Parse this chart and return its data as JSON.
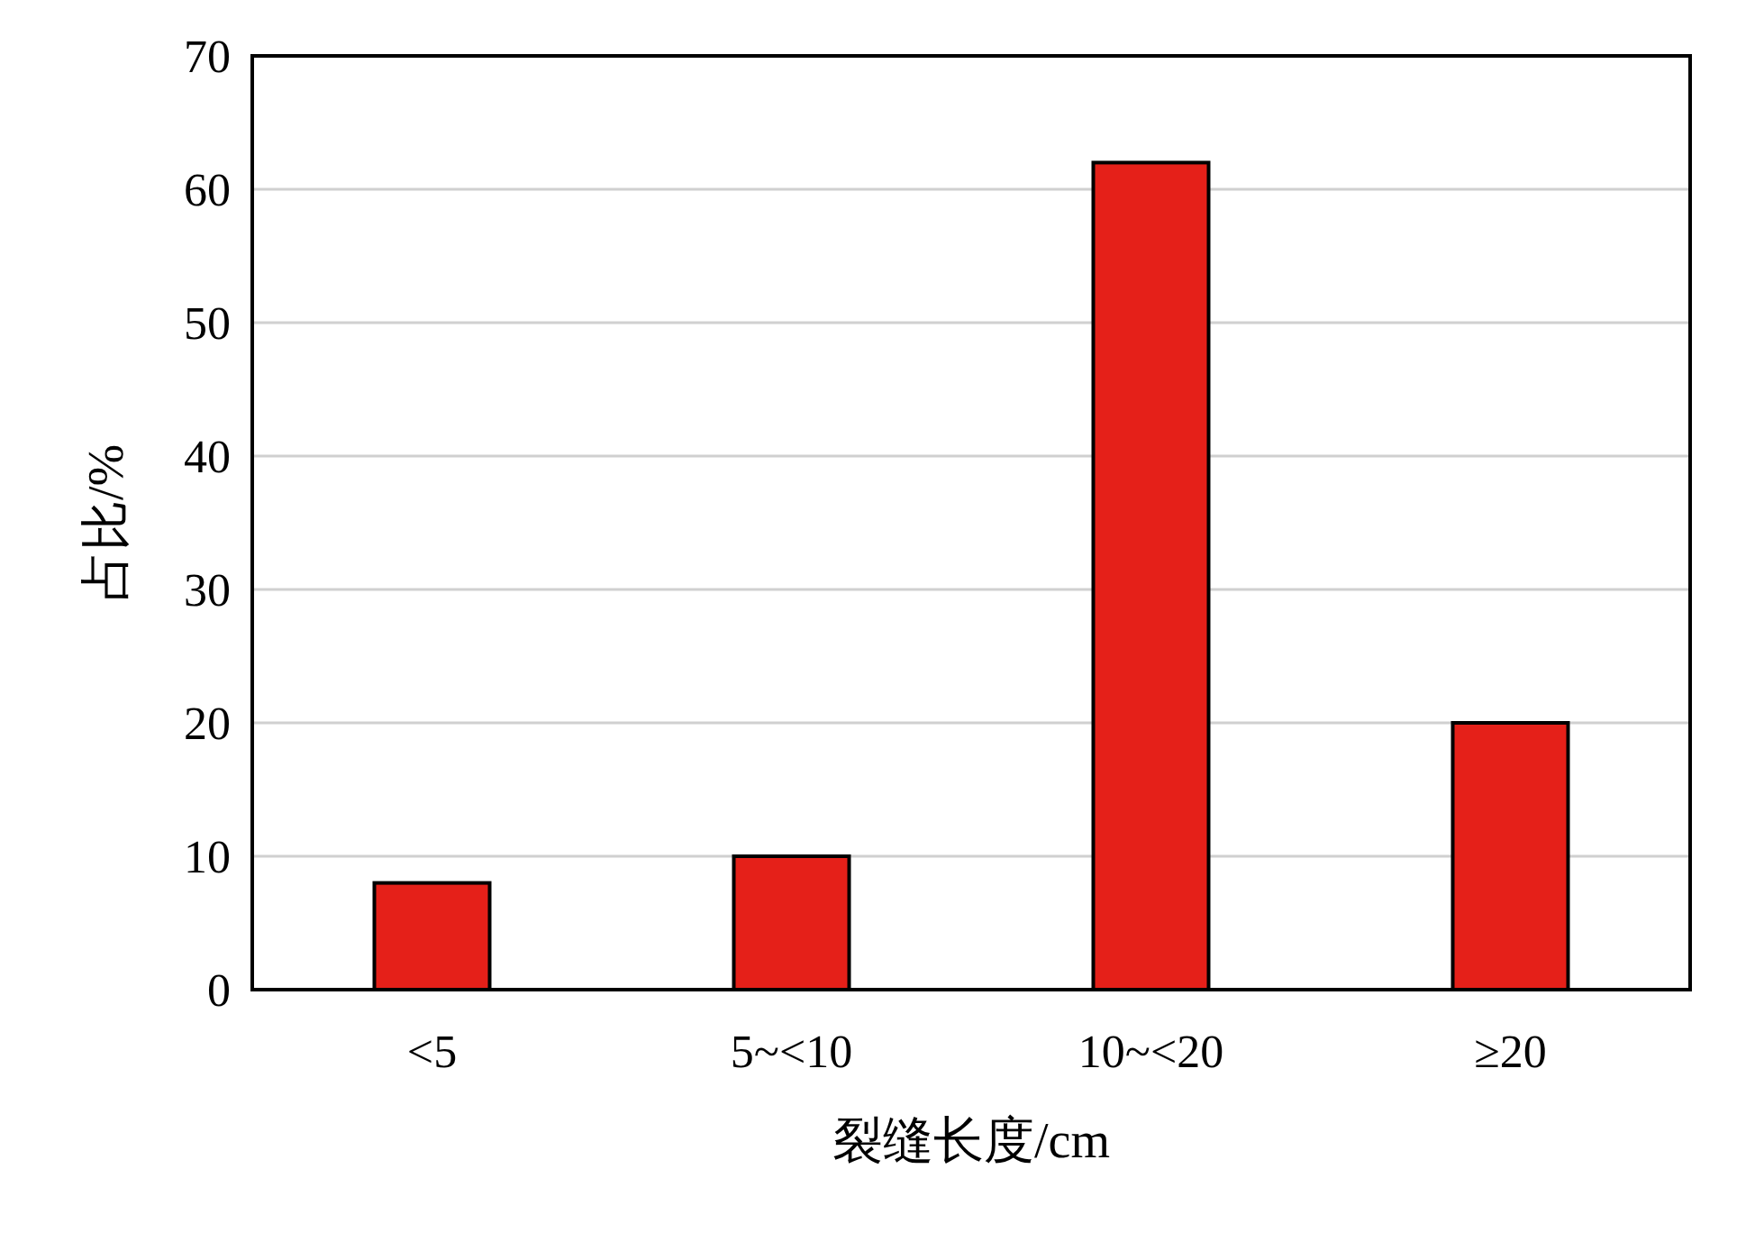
{
  "chart_data": {
    "type": "bar",
    "xlabel": "裂缝长度/cm",
    "ylabel": "占比/%",
    "categories": [
      "<5",
      "5~<10",
      "10~<20",
      "≥20"
    ],
    "values": [
      8,
      10,
      62,
      20
    ],
    "color": "#e52019",
    "ylim": [
      0,
      70
    ],
    "yticks": [
      0,
      10,
      20,
      30,
      40,
      50,
      60,
      70
    ],
    "grid": "y"
  }
}
